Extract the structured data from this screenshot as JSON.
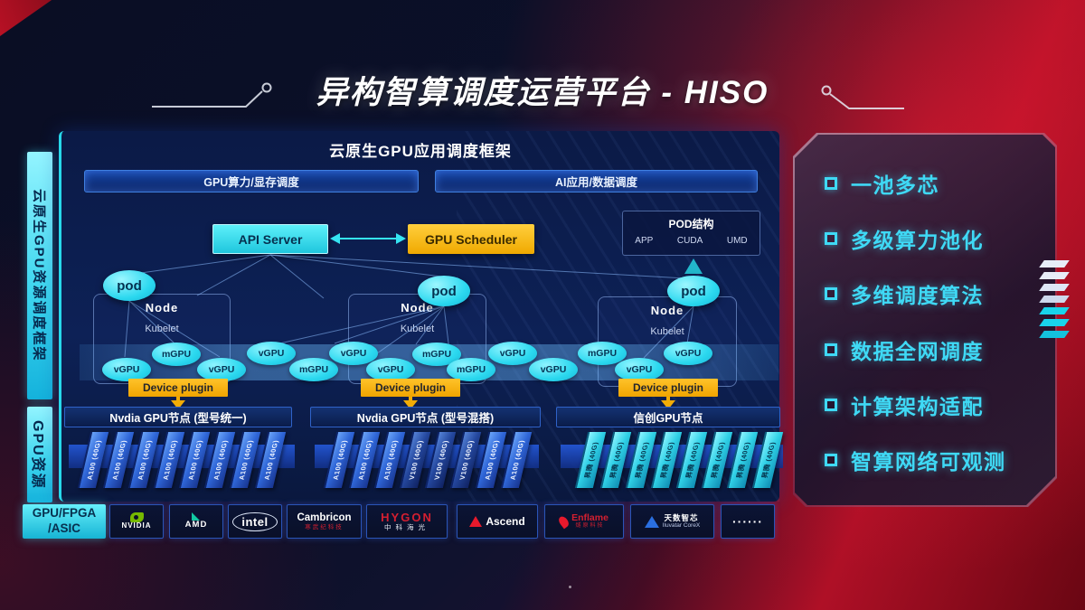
{
  "title": "异构智算调度运营平台 - HISO",
  "left_labels": {
    "framework": "云原生GPU资源调度框架",
    "resources": "GPU资源"
  },
  "scheduler_panel": {
    "header": "云原生GPU应用调度框架",
    "bars": [
      "GPU算力/显存调度",
      "AI应用/数据调度"
    ],
    "api_server": "API Server",
    "gpu_scheduler": "GPU Scheduler",
    "pod_struct": {
      "title": "POD结构",
      "items": [
        "APP",
        "CUDA",
        "UMD"
      ]
    },
    "nodes": [
      {
        "pod": "pod",
        "node": "Node",
        "kubelet": "Kubelet",
        "device_plugin": "Device plugin"
      },
      {
        "pod": "pod",
        "node": "Node",
        "kubelet": "Kubelet",
        "device_plugin": "Device plugin"
      },
      {
        "pod": "pod",
        "node": "Node",
        "kubelet": "Kubelet",
        "device_plugin": "Device plugin"
      }
    ],
    "gpu_ellipses": [
      "vGPU",
      "mGPU",
      "vGPU",
      "vGPU",
      "mGPU",
      "vGPU",
      "vGPU",
      "mGPU",
      "mGPU",
      "vGPU",
      "vGPU",
      "mGPU",
      "vGPU",
      "vGPU"
    ]
  },
  "gpu_nodes": [
    {
      "label": "Nvdia GPU节点 (型号统一)",
      "cards": [
        "A100 (40G)",
        "A100 (40G)",
        "A100 (40G)",
        "A100 (40G)",
        "A100 (40G)",
        "A100 (40G)",
        "A100 (40G)",
        "A100 (40G)"
      ]
    },
    {
      "label": "Nvdia GPU节点 (型号混搭)",
      "cards": [
        "A100 (40G)",
        "A100 (40G)",
        "A100 (40G)",
        "V100 (40G)",
        "V100 (40G)",
        "V100 (40G)",
        "A100 (40G)",
        "A100 (40G)"
      ]
    },
    {
      "label": "信创GPU节点",
      "cards": [
        "昇腾 (40G)",
        "昇腾 (40G)",
        "昇腾 (40G)",
        "昇腾 (40G)",
        "昇腾 (40G)",
        "昇腾 (40G)",
        "昇腾 (40G)",
        "昇腾 (40G)"
      ]
    }
  ],
  "vendors": {
    "label_line1": "GPU/FPGA",
    "label_line2": "/ASIC",
    "items": [
      {
        "id": "nvidia",
        "name": "NVIDIA",
        "sub": ""
      },
      {
        "id": "amd",
        "name": "AMD",
        "sub": ""
      },
      {
        "id": "intel",
        "name": "intel",
        "sub": ""
      },
      {
        "id": "cambricon",
        "name": "Cambricon",
        "sub": "寒武纪科技"
      },
      {
        "id": "hygon",
        "name": "HYGON",
        "sub": "中科海光"
      },
      {
        "id": "ascend",
        "name": "Ascend",
        "sub": ""
      },
      {
        "id": "enflame",
        "name": "Enflame",
        "sub": "燧原科技"
      },
      {
        "id": "iluvatar",
        "name": "天数智芯",
        "sub": "Iluvatar CoreX"
      },
      {
        "id": "dots",
        "name": "······",
        "sub": ""
      }
    ]
  },
  "features": [
    "一池多芯",
    "多级算力池化",
    "多维调度算法",
    "数据全网调度",
    "计算架构适配",
    "智算网络可观测"
  ],
  "colors": {
    "accent_cyan": "#35E4F2",
    "accent_yellow": "#F5B301",
    "nvidia_green": "#76B900",
    "brand_red": "#C41428",
    "card_blue": "#2F66D8",
    "xinchuang_cyan": "#2FD0E6"
  }
}
